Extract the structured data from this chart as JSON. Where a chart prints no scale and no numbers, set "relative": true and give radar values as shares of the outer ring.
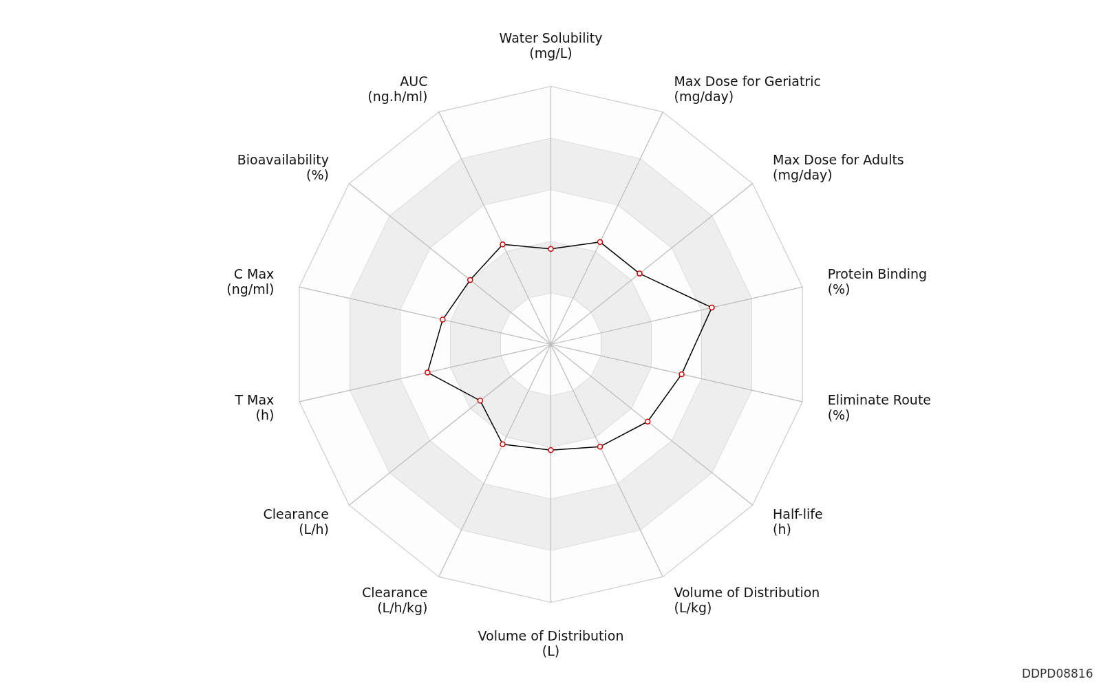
{
  "chart_data": {
    "type": "radar",
    "relative": true,
    "grid": true,
    "marker": "circle",
    "categories": [
      "Water Solubility\n(mg/L)",
      "Max Dose for Geriatric\n(mg/day)",
      "Max Dose for Adults\n(mg/day)",
      "Protein Binding\n(%)",
      "Eliminate Route\n(%)",
      "Half-life\n(h)",
      "Volume of Distribution\n(L/kg)",
      "Volume of Distribution\n(L)",
      "Clearance\n(L/h/kg)",
      "Clearance\n(L/h)",
      "T Max\n(h)",
      "C Max\n(ng/ml)",
      "Bioavailability\n(%)",
      "AUC\n(ng.h/ml)"
    ],
    "series": [
      {
        "color": "#000000",
        "values": [
          0.37,
          0.44,
          0.44,
          0.64,
          0.52,
          0.48,
          0.44,
          0.41,
          0.43,
          0.35,
          0.49,
          0.43,
          0.4,
          0.43
        ]
      }
    ],
    "annotations": [
      "DDPD08816"
    ]
  }
}
